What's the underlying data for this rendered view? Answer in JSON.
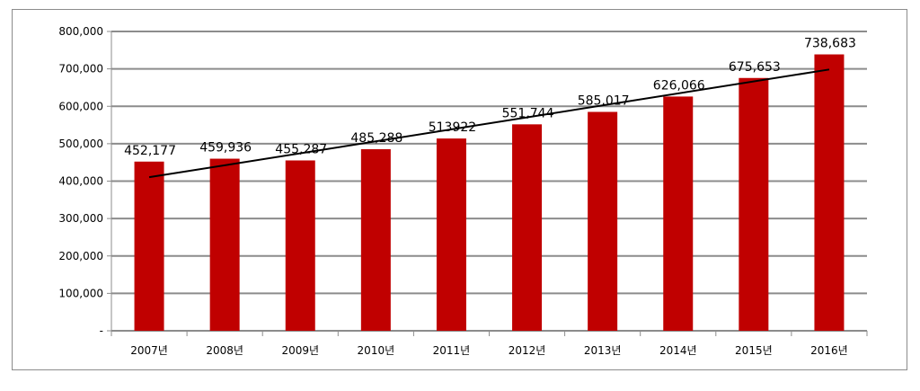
{
  "chart_data": {
    "type": "bar",
    "categories": [
      "2007년",
      "2008년",
      "2009년",
      "2010년",
      "2011년",
      "2012년",
      "2013년",
      "2014년",
      "2015년",
      "2016년"
    ],
    "values": [
      452177,
      459936,
      455287,
      485288,
      513922,
      551744,
      585017,
      626066,
      675653,
      738683
    ],
    "data_labels": [
      "452,177",
      "459,936",
      "455,287",
      "485,288",
      "513922",
      "551,744",
      "585,017",
      "626,066",
      "675,653",
      "738,683"
    ],
    "y_tick_labels": [
      "-",
      "100,000",
      "200,000",
      "300,000",
      "400,000",
      "500,000",
      "600,000",
      "700,000",
      "800,000"
    ],
    "ylim": [
      0,
      800000
    ],
    "y_tick_step": 100000,
    "grid": true,
    "trendline": "linear",
    "title": "",
    "xlabel": "",
    "ylabel": "",
    "colors": {
      "bar": "#c00000",
      "grid": "#8c8c8c",
      "trendline": "#000000"
    }
  }
}
